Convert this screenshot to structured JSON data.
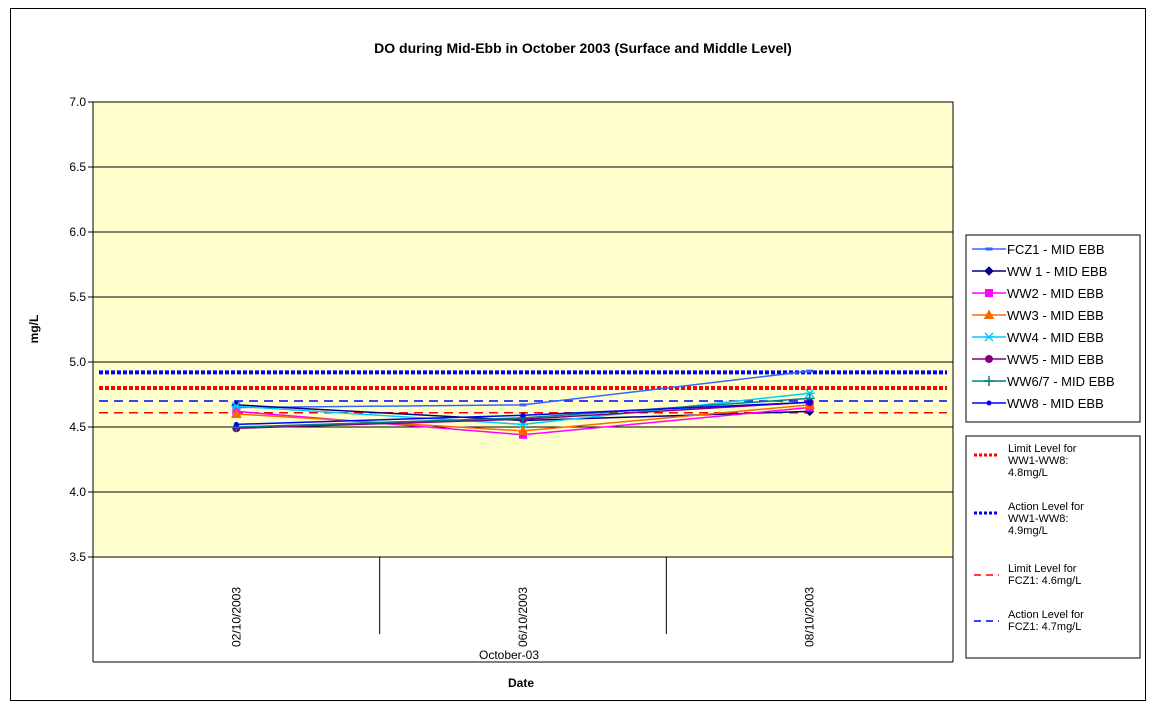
{
  "chart_data": {
    "type": "line",
    "title": "DO during Mid-Ebb in October 2003 (Surface and Middle Level)",
    "xlabel": "Date",
    "ylabel": "mg/L",
    "x_group_label": "October-03",
    "categories": [
      "02/10/2003",
      "06/10/2003",
      "08/10/2003"
    ],
    "ylim": [
      3.5,
      7.0
    ],
    "yticks": [
      "7.0",
      "6.5",
      "6.0",
      "5.5",
      "5.0",
      "4.5",
      "4.0",
      "3.5"
    ],
    "grid": true,
    "legend_position": "right",
    "series": [
      {
        "name": "FCZ1 - MID EBB",
        "values": [
          4.65,
          4.67,
          4.93
        ],
        "color": "#3366ff",
        "marker": "dash"
      },
      {
        "name": "WW 1 - MID EBB",
        "values": [
          4.67,
          4.55,
          4.62
        ],
        "color": "#000080",
        "marker": "diamond"
      },
      {
        "name": "WW2 - MID EBB",
        "values": [
          4.62,
          4.44,
          4.65
        ],
        "color": "#ff00ff",
        "marker": "square"
      },
      {
        "name": "WW3 - MID EBB",
        "values": [
          4.6,
          4.47,
          4.67
        ],
        "color": "#ff6600",
        "marker": "triangle"
      },
      {
        "name": "WW4 - MID EBB",
        "values": [
          4.66,
          4.52,
          4.76
        ],
        "color": "#00ccff",
        "marker": "star"
      },
      {
        "name": "WW5 - MID EBB",
        "values": [
          4.49,
          4.56,
          4.69
        ],
        "color": "#800080",
        "marker": "circle"
      },
      {
        "name": "WW6/7 - MID EBB",
        "values": [
          4.5,
          4.57,
          4.72
        ],
        "color": "#008080",
        "marker": "plus"
      },
      {
        "name": "WW8 - MID EBB",
        "values": [
          4.52,
          4.59,
          4.69
        ],
        "color": "#0000ff",
        "marker": "dot"
      }
    ],
    "reference_lines": [
      {
        "name": "Limit Level for WW1-WW8: 4.8mg/L",
        "value": 4.8,
        "color": "#ff0000",
        "style": "dotted-thick"
      },
      {
        "name": "Action Level for WW1-WW8: 4.9mg/L",
        "value": 4.92,
        "color": "#0000ff",
        "style": "dotted-thick"
      },
      {
        "name": "Limit Level for FCZ1: 4.6mg/L",
        "value": 4.61,
        "color": "#ff0000",
        "style": "dashed"
      },
      {
        "name": "Action Level for FCZ1: 4.7mg/L",
        "value": 4.7,
        "color": "#0000ff",
        "style": "dashed"
      }
    ],
    "reference_legend_lines": [
      [
        "Limit Level for",
        "WW1-WW8:",
        "4.8mg/L"
      ],
      [
        "Action Level for",
        "WW1-WW8:",
        "4.9mg/L"
      ],
      [
        "Limit Level for",
        "FCZ1: 4.6mg/L"
      ],
      [
        "Action Level for",
        "FCZ1: 4.7mg/L"
      ]
    ]
  }
}
